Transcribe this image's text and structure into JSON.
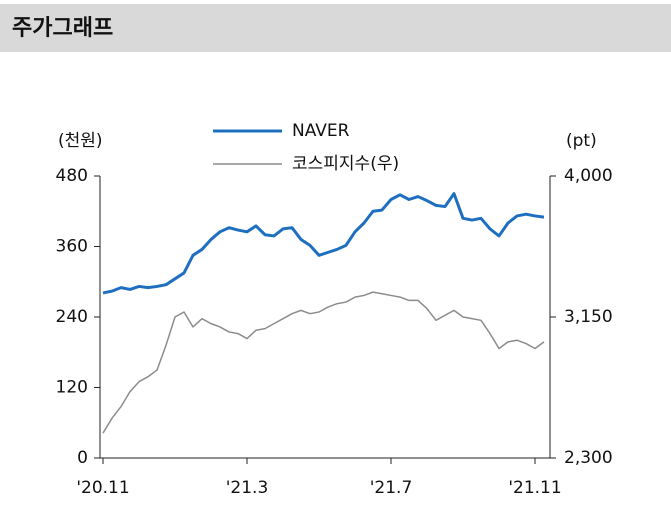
{
  "chart_data": {
    "type": "line",
    "title": "주가그래프",
    "y_label": "(천원)",
    "y2_label": "(pt)",
    "categories": [
      "'20.11",
      null,
      null,
      null,
      null,
      null,
      null,
      null,
      null,
      null,
      null,
      null,
      null,
      null,
      null,
      null,
      "'21.3",
      null,
      null,
      null,
      null,
      null,
      null,
      null,
      null,
      null,
      null,
      null,
      null,
      null,
      null,
      null,
      "'21.7",
      null,
      null,
      null,
      null,
      null,
      null,
      null,
      null,
      null,
      null,
      null,
      null,
      null,
      null,
      null,
      "'21.11",
      null
    ],
    "series": [
      {
        "name": "NAVER",
        "color": "#1f6fc0",
        "axis": "y",
        "values": [
          281,
          284,
          290,
          287,
          292,
          290,
          292,
          295,
          305,
          315,
          345,
          355,
          372,
          385,
          392,
          388,
          385,
          395,
          380,
          378,
          390,
          392,
          372,
          362,
          345,
          350,
          355,
          362,
          385,
          400,
          420,
          422,
          440,
          448,
          440,
          445,
          438,
          430,
          428,
          450,
          408,
          405,
          408,
          390,
          378,
          400,
          412,
          415,
          412,
          410
        ]
      },
      {
        "name": "코스피지수(우)",
        "color": "#8c8c8c",
        "axis": "y2",
        "values": [
          2450,
          2540,
          2610,
          2700,
          2760,
          2790,
          2830,
          2980,
          3150,
          3180,
          3090,
          3140,
          3110,
          3090,
          3060,
          3050,
          3020,
          3070,
          3080,
          3110,
          3140,
          3170,
          3190,
          3170,
          3180,
          3210,
          3230,
          3240,
          3270,
          3280,
          3300,
          3290,
          3280,
          3270,
          3250,
          3250,
          3200,
          3130,
          3160,
          3190,
          3150,
          3140,
          3130,
          3050,
          2960,
          3000,
          3010,
          2990,
          2960,
          3000
        ]
      }
    ],
    "ylim": [
      0,
      480
    ],
    "yticks": [
      0,
      120,
      240,
      360,
      480
    ],
    "y2lim": [
      2300,
      4000
    ],
    "y2ticks": [
      {
        "value": 2300,
        "label": "2,300"
      },
      {
        "value": 3150,
        "label": "3,150"
      },
      {
        "value": 4000,
        "label": "4,000"
      }
    ],
    "grid": false
  }
}
